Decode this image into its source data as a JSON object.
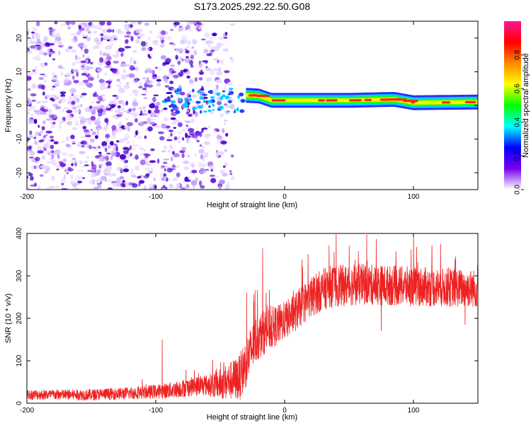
{
  "title": "S173.2025.292.22.50.G08",
  "colors": {
    "axis": "#000000",
    "snr_line": "#ee2222",
    "spectro_low": "#7700ee",
    "spectro_mid": "#00ccff",
    "spectro_band_green": "#22ff00",
    "spectro_high": "#ff2222"
  },
  "chart_data": [
    {
      "type": "heatmap",
      "name": "spectrogram",
      "xlabel": "Height of straight line (km)",
      "ylabel": "Frequency (Hz)",
      "xlim": [
        -200,
        150
      ],
      "ylim": [
        -25,
        25
      ],
      "x_ticks": [
        -200,
        -100,
        0,
        100
      ],
      "x_tick_labels": [
        "-200",
        "-100",
        "0",
        "100"
      ],
      "y_ticks": [
        -20,
        -10,
        0,
        10,
        20
      ],
      "y_tick_labels": [
        "-20",
        "-10",
        "0",
        "10",
        "20"
      ],
      "signal_band": {
        "description": "narrow high-amplitude band near 1-3 Hz for heights > -30 km",
        "center_hz": [
          {
            "x": -30,
            "y": 3.0
          },
          {
            "x": -20,
            "y": 2.8
          },
          {
            "x": -10,
            "y": 1.5
          },
          {
            "x": 0,
            "y": 1.5
          },
          {
            "x": 50,
            "y": 1.5
          },
          {
            "x": 85,
            "y": 1.8
          },
          {
            "x": 100,
            "y": 0.8
          },
          {
            "x": 150,
            "y": 1.0
          }
        ]
      },
      "colorbar": {
        "label": "Normalized spectral amplitude",
        "range": [
          0.0,
          1.0
        ],
        "ticks": [
          0.0,
          0.2,
          0.4,
          0.6,
          0.8
        ],
        "tick_labels": [
          "0.0",
          "0.2",
          "0.4",
          "0.6",
          "0.8"
        ],
        "stops": [
          "#ffffff",
          "#7700ee",
          "#0000ff",
          "#00ffff",
          "#00ff00",
          "#ffff00",
          "#ff8800",
          "#ff0000",
          "#ff1493"
        ]
      }
    },
    {
      "type": "line",
      "name": "snr",
      "xlabel": "Height of straight line (km)",
      "ylabel": "SNR (10 * v/v)",
      "xlim": [
        -200,
        150
      ],
      "ylim": [
        0,
        400
      ],
      "x_ticks": [
        -200,
        -100,
        0,
        100
      ],
      "x_tick_labels": [
        "-200",
        "-100",
        "0",
        "100"
      ],
      "y_ticks": [
        0,
        100,
        200,
        300,
        400
      ],
      "y_tick_labels": [
        "0",
        "100",
        "200",
        "300",
        "400"
      ],
      "trend": [
        {
          "x": -200,
          "y": 20
        },
        {
          "x": -150,
          "y": 20
        },
        {
          "x": -110,
          "y": 25
        },
        {
          "x": -90,
          "y": 30
        },
        {
          "x": -70,
          "y": 40
        },
        {
          "x": -50,
          "y": 45
        },
        {
          "x": -35,
          "y": 60
        },
        {
          "x": -28,
          "y": 110
        },
        {
          "x": -22,
          "y": 150
        },
        {
          "x": -15,
          "y": 170
        },
        {
          "x": -5,
          "y": 185
        },
        {
          "x": 5,
          "y": 205
        },
        {
          "x": 15,
          "y": 235
        },
        {
          "x": 25,
          "y": 260
        },
        {
          "x": 35,
          "y": 275
        },
        {
          "x": 60,
          "y": 280
        },
        {
          "x": 100,
          "y": 275
        },
        {
          "x": 150,
          "y": 270
        }
      ],
      "noise_amplitude": [
        {
          "x": -200,
          "y": 12
        },
        {
          "x": -110,
          "y": 15
        },
        {
          "x": -60,
          "y": 25
        },
        {
          "x": -30,
          "y": 60
        },
        {
          "x": 0,
          "y": 45
        },
        {
          "x": 30,
          "y": 50
        },
        {
          "x": 150,
          "y": 45
        }
      ],
      "spikes": [
        {
          "x": -95,
          "y": 150
        },
        {
          "x": -17,
          "y": 365
        },
        {
          "x": -24,
          "y": 240
        },
        {
          "x": 40,
          "y": 398
        },
        {
          "x": 100,
          "y": 398
        },
        {
          "x": 75,
          "y": 170
        },
        {
          "x": 140,
          "y": 185
        }
      ]
    }
  ]
}
